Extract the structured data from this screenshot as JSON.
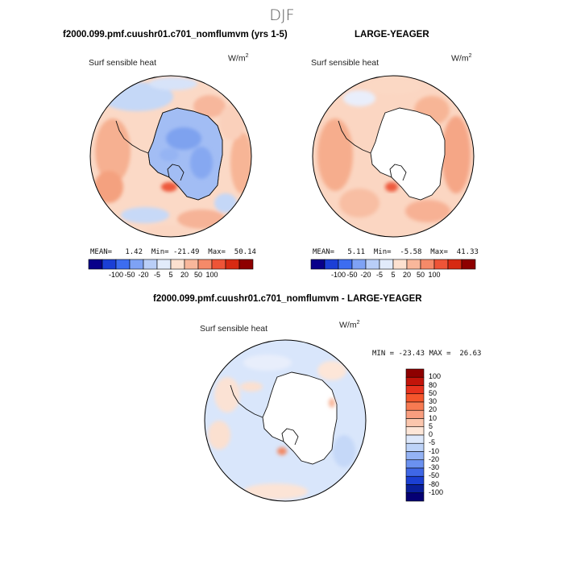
{
  "season": "DJF",
  "units": "W/m²",
  "units_base": "W/m",
  "units_exp": "2",
  "chart_data": [
    {
      "type": "heatmap",
      "projection": "south-polar-stereographic",
      "title": "f2000.099.pmf.cuushr01.c701_nomflumvm (yrs 1-5)",
      "field": "Surf sensible heat",
      "units": "W/m²",
      "stats": {
        "mean": 1.42,
        "min": -21.49,
        "max": 50.14
      },
      "stats_text": "MEAN=   1.42  Min= -21.49  Max=  50.14",
      "colorbar_levels": [
        -100,
        -50,
        -20,
        -5,
        5,
        20,
        50,
        100
      ],
      "colorbar_ticks": [
        "-100",
        "-50",
        "-20",
        "-5",
        "5",
        "20",
        "50",
        "100"
      ],
      "antarctica": "negative (-5 to -20)"
    },
    {
      "type": "heatmap",
      "projection": "south-polar-stereographic",
      "title": "LARGE-YEAGER",
      "field": "Surf sensible heat",
      "units": "W/m²",
      "stats": {
        "mean": 5.11,
        "min": -5.58,
        "max": 41.33
      },
      "stats_text": "MEAN=   5.11  Min=  -5.58  Max=  41.33",
      "colorbar_levels": [
        -100,
        -50,
        -20,
        -5,
        5,
        20,
        50,
        100
      ],
      "colorbar_ticks": [
        "-100",
        "-50",
        "-20",
        "-5",
        "5",
        "20",
        "50",
        "100"
      ],
      "antarctica": "missing"
    },
    {
      "type": "heatmap",
      "projection": "south-polar-stereographic",
      "title": "f2000.099.pmf.cuushr01.c701_nomflumvm - LARGE-YEAGER",
      "field": "Surf sensible heat",
      "units": "W/m²",
      "stats": {
        "min": -23.43,
        "max": 26.63
      },
      "stats_text": "MIN = -23.43 MAX =  26.63",
      "colorbar_levels": [
        -100,
        -80,
        -50,
        -30,
        -20,
        -10,
        -5,
        0,
        5,
        10,
        20,
        30,
        50,
        80,
        100
      ],
      "colorbar_ticks": [
        "100",
        "80",
        "50",
        "30",
        "20",
        "10",
        "5",
        "0",
        "-5",
        "-10",
        "-20",
        "-30",
        "-50",
        "-80",
        "-100"
      ],
      "antarctica": "missing"
    }
  ],
  "colors": {
    "bar8": [
      "#08008a",
      "#1b3fd6",
      "#3d6df0",
      "#7ea2f5",
      "#b9cef8",
      "#e2ebfb",
      "#fde1d0",
      "#f9b79b",
      "#f58a69",
      "#ee5437",
      "#d72a12",
      "#8e0000"
    ],
    "bar15": [
      "#8e0000",
      "#c2140a",
      "#e8321e",
      "#f5562c",
      "#f77a52",
      "#f99e7f",
      "#fbc6ad",
      "#fde6d8",
      "#dde8fb",
      "#bdd3f8",
      "#94b3f5",
      "#6b91f0",
      "#3f67e6",
      "#1b3fd2",
      "#0a1f9a",
      "#050073"
    ]
  }
}
